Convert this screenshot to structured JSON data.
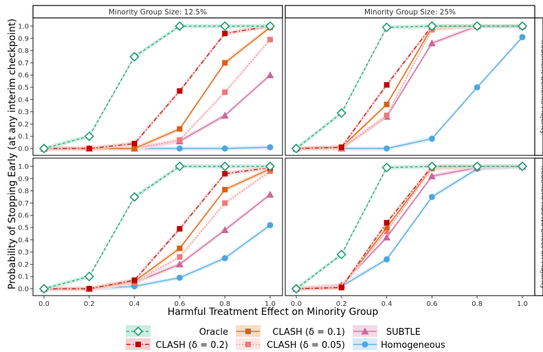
{
  "chart_data": [
    {
      "type": "line",
      "facet_col": "Minority Group Size: 12.5%",
      "facet_row": "Treatment Benefits Majority",
      "x": [
        0.0,
        0.2,
        0.4,
        0.6,
        0.8,
        1.0
      ],
      "series": [
        {
          "name": "Oracle",
          "values": [
            0.0,
            0.1,
            0.75,
            1.0,
            1.0,
            1.0
          ]
        },
        {
          "name": "CLASH (δ = 0.2)",
          "values": [
            0.0,
            0.0,
            0.04,
            0.47,
            0.94,
            1.0
          ]
        },
        {
          "name": "CLASH (δ = 0.1)",
          "values": [
            0.0,
            0.0,
            0.0,
            0.16,
            0.7,
            0.99
          ]
        },
        {
          "name": "CLASH (δ = 0.05)",
          "values": [
            0.0,
            0.0,
            0.0,
            0.07,
            0.46,
            0.89
          ]
        },
        {
          "name": "SUBTLE",
          "values": [
            0.0,
            0.0,
            0.0,
            0.06,
            0.27,
            0.6
          ]
        },
        {
          "name": "Homogeneous",
          "values": [
            0.0,
            0.0,
            0.0,
            0.0,
            0.0,
            0.01
          ]
        }
      ]
    },
    {
      "type": "line",
      "facet_col": "Minority Group Size: 25%",
      "facet_row": "Treatment Benefits Majority",
      "x": [
        0.0,
        0.2,
        0.4,
        0.6,
        0.8,
        1.0
      ],
      "series": [
        {
          "name": "Oracle",
          "values": [
            0.0,
            0.29,
            0.99,
            1.0,
            1.0,
            1.0
          ]
        },
        {
          "name": "CLASH (δ = 0.2)",
          "values": [
            0.0,
            0.01,
            0.52,
            1.0,
            1.0,
            1.0
          ]
        },
        {
          "name": "CLASH (δ = 0.1)",
          "values": [
            0.0,
            0.01,
            0.36,
            0.99,
            1.0,
            1.0
          ]
        },
        {
          "name": "CLASH (δ = 0.05)",
          "values": [
            0.0,
            0.0,
            0.27,
            0.97,
            1.0,
            1.0
          ]
        },
        {
          "name": "SUBTLE",
          "values": [
            0.0,
            0.0,
            0.26,
            0.86,
            1.0,
            1.0
          ]
        },
        {
          "name": "Homogeneous",
          "values": [
            0.0,
            0.0,
            0.0,
            0.08,
            0.5,
            0.91
          ]
        }
      ]
    },
    {
      "type": "line",
      "facet_col": "Minority Group Size: 12.5%",
      "facet_row": "Treatment Has No Effect on Majority",
      "x": [
        0.0,
        0.2,
        0.4,
        0.6,
        0.8,
        1.0
      ],
      "series": [
        {
          "name": "Oracle",
          "values": [
            0.0,
            0.1,
            0.75,
            1.0,
            1.0,
            1.0
          ]
        },
        {
          "name": "CLASH (δ = 0.2)",
          "values": [
            0.0,
            0.0,
            0.07,
            0.49,
            0.94,
            0.99
          ]
        },
        {
          "name": "CLASH (δ = 0.1)",
          "values": [
            0.0,
            0.0,
            0.06,
            0.33,
            0.81,
            0.98
          ]
        },
        {
          "name": "CLASH (δ = 0.05)",
          "values": [
            0.0,
            0.0,
            0.05,
            0.26,
            0.7,
            0.96
          ]
        },
        {
          "name": "SUBTLE",
          "values": [
            0.0,
            0.0,
            0.05,
            0.2,
            0.48,
            0.77
          ]
        },
        {
          "name": "Homogeneous",
          "values": [
            0.0,
            0.0,
            0.02,
            0.09,
            0.25,
            0.52
          ]
        }
      ]
    },
    {
      "type": "line",
      "facet_col": "Minority Group Size: 25%",
      "facet_row": "Treatment Has No Effect on Majority",
      "x": [
        0.0,
        0.2,
        0.4,
        0.6,
        0.8,
        1.0
      ],
      "series": [
        {
          "name": "Oracle",
          "values": [
            0.0,
            0.28,
            0.99,
            1.0,
            1.0,
            1.0
          ]
        },
        {
          "name": "CLASH (δ = 0.2)",
          "values": [
            0.0,
            0.01,
            0.54,
            1.0,
            1.0,
            1.0
          ]
        },
        {
          "name": "CLASH (δ = 0.1)",
          "values": [
            0.0,
            0.01,
            0.5,
            0.99,
            1.0,
            1.0
          ]
        },
        {
          "name": "CLASH (δ = 0.05)",
          "values": [
            0.0,
            0.02,
            0.47,
            0.98,
            1.0,
            1.0
          ]
        },
        {
          "name": "SUBTLE",
          "values": [
            0.0,
            0.03,
            0.42,
            0.92,
            0.99,
            1.0
          ]
        },
        {
          "name": "Homogeneous",
          "values": [
            0.0,
            0.02,
            0.24,
            0.75,
            0.98,
            1.0
          ]
        }
      ]
    }
  ],
  "axes": {
    "xlabel": "Harmful Treatment Effect on Minority Group",
    "ylabel": "Probability of Stopping Early (at any interim checkpoint)",
    "x_ticks": [
      "0.0",
      "0.2",
      "0.4",
      "0.6",
      "0.8",
      "1.0"
    ],
    "y_ticks": [
      "0.0",
      "0.1",
      "0.2",
      "0.3",
      "0.4",
      "0.5",
      "0.6",
      "0.7",
      "0.8",
      "0.9",
      "1.0"
    ],
    "xlim": [
      0,
      1
    ],
    "ylim": [
      0,
      1
    ]
  },
  "facets": {
    "cols": [
      "Minority Group Size: 12.5%",
      "Minority Group Size: 25%"
    ],
    "rows": [
      "Treatment Benefits Majority",
      "Treatment Has No Effect on Majority"
    ]
  },
  "legend": {
    "placement": "bottom",
    "entries": [
      {
        "name": "Oracle",
        "label": "Oracle",
        "color": "#1e9e6e",
        "fill": "#bfe8d8",
        "marker": "diamond-open",
        "dash": "4,3"
      },
      {
        "name": "CLASH (δ = 0.2)",
        "label": "CLASH (δ = 0.2)",
        "color": "#c00000",
        "fill": "#f4c4c4",
        "marker": "square",
        "dash": "6,3,1.5,3"
      },
      {
        "name": "CLASH (δ = 0.1)",
        "label": "CLASH (δ = 0.1)",
        "color": "#d95f0e",
        "fill": "#fbd3b0",
        "marker": "square",
        "dash": ""
      },
      {
        "name": "CLASH (δ = 0.05)",
        "label": "CLASH (δ = 0.05)",
        "color": "#f07878",
        "fill": "#fde0e0",
        "marker": "square",
        "dash": "1.5,2.5"
      },
      {
        "name": "SUBTLE",
        "label": "SUBTLE",
        "color": "#cc6699",
        "fill": "#efcfe0",
        "marker": "triangle",
        "dash": ""
      },
      {
        "name": "Homogeneous",
        "label": "Homogeneous",
        "color": "#4aa8e0",
        "fill": "#cde6f6",
        "marker": "circle",
        "dash": ""
      }
    ]
  }
}
